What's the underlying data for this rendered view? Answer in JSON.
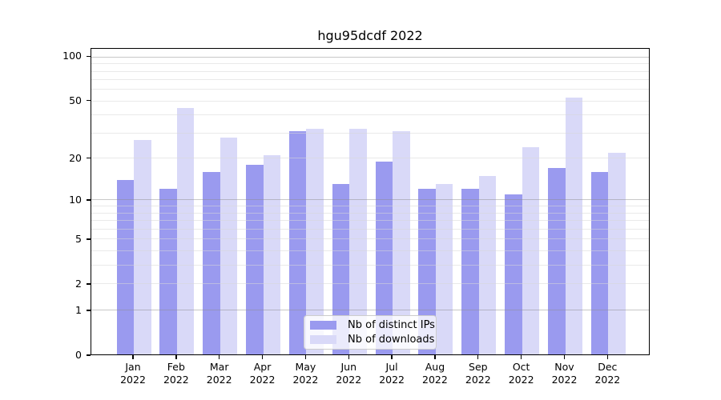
{
  "chart_data": {
    "type": "bar",
    "title": "hgu95dcdf 2022",
    "categories": [
      "Jan 2022",
      "Feb 2022",
      "Mar 2022",
      "Apr 2022",
      "May 2022",
      "Jun 2022",
      "Jul 2022",
      "Aug 2022",
      "Sep 2022",
      "Oct 2022",
      "Nov 2022",
      "Dec 2022"
    ],
    "series": [
      {
        "name": "Nb of distinct IPs",
        "color": "#9a9aef",
        "values": [
          14,
          12,
          16,
          18,
          31,
          13,
          19,
          12,
          12,
          11,
          17,
          16
        ]
      },
      {
        "name": "Nb of downloads",
        "color": "#d9d9f8",
        "values": [
          27,
          45,
          28,
          21,
          32,
          32,
          31,
          13,
          15,
          24,
          53,
          22
        ]
      }
    ],
    "y_axis": {
      "scale": "log1p",
      "tick_values": [
        0,
        1,
        2,
        5,
        10,
        20,
        50,
        100
      ],
      "tick_labels": [
        "0",
        "1",
        "2",
        "5",
        "10",
        "20",
        "50",
        "100"
      ],
      "major_gridlines": [
        1,
        10,
        100
      ],
      "minor_gridlines": [
        2,
        3,
        4,
        5,
        6,
        7,
        8,
        9,
        20,
        30,
        40,
        50,
        60,
        70,
        80,
        90
      ],
      "top_value": 114
    },
    "legend": {
      "position": "lower center inside",
      "entries": [
        "Nb of distinct IPs",
        "Nb of downloads"
      ]
    },
    "grid": true
  },
  "colors": {
    "background": "#ffffff",
    "spine": "#000000",
    "grid_major": "#c9c9c9",
    "grid_minor": "#ececec",
    "bar_distinct_ips": "#9a9aef",
    "bar_downloads": "#d9d9f8",
    "text": "#000000"
  }
}
